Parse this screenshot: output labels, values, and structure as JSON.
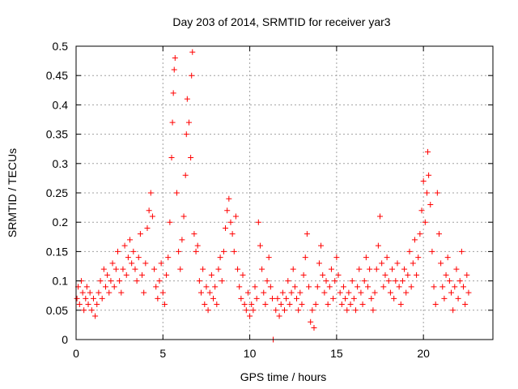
{
  "chart_data": {
    "type": "scatter",
    "title": "Day 203 of 2014, SRMTID for receiver yar3",
    "xlabel": "GPS time / hours",
    "ylabel": "SRMTID / TECUs",
    "xlim": [
      0,
      24
    ],
    "ylim": [
      0,
      0.5
    ],
    "xticks": [
      0,
      5,
      10,
      15,
      20
    ],
    "xtick_labels": [
      "0",
      "5",
      "10",
      "15",
      "20"
    ],
    "yticks": [
      0,
      0.05,
      0.1,
      0.15,
      0.2,
      0.25,
      0.3,
      0.35,
      0.4,
      0.45,
      0.5
    ],
    "ytick_labels": [
      "0",
      "0.05",
      "0.1",
      "0.15",
      "0.2",
      "0.25",
      "0.3",
      "0.35",
      "0.4",
      "0.45",
      "0.5"
    ],
    "grid": true,
    "marker": "+",
    "color": "#ff0000",
    "series": [
      {
        "name": "yar3",
        "points": [
          [
            0.05,
            0.07
          ],
          [
            0.12,
            0.09
          ],
          [
            0.2,
            0.06
          ],
          [
            0.3,
            0.1
          ],
          [
            0.38,
            0.08
          ],
          [
            0.45,
            0.05
          ],
          [
            0.55,
            0.07
          ],
          [
            0.62,
            0.09
          ],
          [
            0.7,
            0.06
          ],
          [
            0.8,
            0.08
          ],
          [
            0.9,
            0.05
          ],
          [
            1.0,
            0.07
          ],
          [
            1.1,
            0.04
          ],
          [
            1.2,
            0.06
          ],
          [
            1.3,
            0.08
          ],
          [
            1.4,
            0.1
          ],
          [
            1.5,
            0.07
          ],
          [
            1.6,
            0.12
          ],
          [
            1.7,
            0.09
          ],
          [
            1.8,
            0.11
          ],
          [
            1.9,
            0.08
          ],
          [
            2.0,
            0.1
          ],
          [
            2.1,
            0.13
          ],
          [
            2.2,
            0.09
          ],
          [
            2.3,
            0.12
          ],
          [
            2.4,
            0.15
          ],
          [
            2.5,
            0.1
          ],
          [
            2.6,
            0.08
          ],
          [
            2.7,
            0.12
          ],
          [
            2.8,
            0.16
          ],
          [
            2.9,
            0.11
          ],
          [
            3.0,
            0.14
          ],
          [
            3.1,
            0.17
          ],
          [
            3.2,
            0.13
          ],
          [
            3.3,
            0.15
          ],
          [
            3.4,
            0.12
          ],
          [
            3.5,
            0.1
          ],
          [
            3.6,
            0.14
          ],
          [
            3.7,
            0.18
          ],
          [
            3.8,
            0.11
          ],
          [
            3.9,
            0.08
          ],
          [
            4.0,
            0.13
          ],
          [
            4.1,
            0.19
          ],
          [
            4.2,
            0.22
          ],
          [
            4.3,
            0.25
          ],
          [
            4.4,
            0.21
          ],
          [
            4.5,
            0.12
          ],
          [
            4.6,
            0.09
          ],
          [
            4.7,
            0.07
          ],
          [
            4.8,
            0.1
          ],
          [
            4.9,
            0.13
          ],
          [
            5.0,
            0.08
          ],
          [
            5.1,
            0.06
          ],
          [
            5.2,
            0.11
          ],
          [
            5.3,
            0.14
          ],
          [
            5.4,
            0.2
          ],
          [
            5.5,
            0.31
          ],
          [
            5.55,
            0.37
          ],
          [
            5.6,
            0.42
          ],
          [
            5.65,
            0.46
          ],
          [
            5.7,
            0.48
          ],
          [
            5.8,
            0.25
          ],
          [
            5.9,
            0.15
          ],
          [
            6.0,
            0.12
          ],
          [
            6.1,
            0.17
          ],
          [
            6.2,
            0.21
          ],
          [
            6.3,
            0.28
          ],
          [
            6.35,
            0.35
          ],
          [
            6.4,
            0.41
          ],
          [
            6.5,
            0.37
          ],
          [
            6.6,
            0.31
          ],
          [
            6.65,
            0.45
          ],
          [
            6.7,
            0.49
          ],
          [
            6.8,
            0.18
          ],
          [
            6.9,
            0.15
          ],
          [
            7.0,
            0.16
          ],
          [
            7.1,
            0.1
          ],
          [
            7.2,
            0.08
          ],
          [
            7.3,
            0.12
          ],
          [
            7.4,
            0.06
          ],
          [
            7.5,
            0.09
          ],
          [
            7.6,
            0.05
          ],
          [
            7.7,
            0.08
          ],
          [
            7.8,
            0.11
          ],
          [
            7.9,
            0.07
          ],
          [
            8.0,
            0.09
          ],
          [
            8.1,
            0.06
          ],
          [
            8.2,
            0.12
          ],
          [
            8.3,
            0.14
          ],
          [
            8.4,
            0.1
          ],
          [
            8.5,
            0.15
          ],
          [
            8.6,
            0.19
          ],
          [
            8.7,
            0.22
          ],
          [
            8.8,
            0.24
          ],
          [
            8.9,
            0.2
          ],
          [
            9.0,
            0.18
          ],
          [
            9.1,
            0.15
          ],
          [
            9.2,
            0.21
          ],
          [
            9.3,
            0.12
          ],
          [
            9.4,
            0.09
          ],
          [
            9.5,
            0.07
          ],
          [
            9.6,
            0.11
          ],
          [
            9.7,
            0.06
          ],
          [
            9.8,
            0.05
          ],
          [
            9.9,
            0.08
          ],
          [
            10.0,
            0.04
          ],
          [
            10.1,
            0.06
          ],
          [
            10.2,
            0.05
          ],
          [
            10.3,
            0.09
          ],
          [
            10.4,
            0.07
          ],
          [
            10.5,
            0.2
          ],
          [
            10.6,
            0.16
          ],
          [
            10.7,
            0.12
          ],
          [
            10.8,
            0.08
          ],
          [
            10.9,
            0.06
          ],
          [
            11.0,
            0.1
          ],
          [
            11.1,
            0.14
          ],
          [
            11.2,
            0.09
          ],
          [
            11.3,
            0.07
          ],
          [
            11.35,
            0.0
          ],
          [
            11.5,
            0.05
          ],
          [
            11.6,
            0.07
          ],
          [
            11.7,
            0.04
          ],
          [
            11.8,
            0.06
          ],
          [
            11.9,
            0.08
          ],
          [
            12.0,
            0.05
          ],
          [
            12.1,
            0.07
          ],
          [
            12.2,
            0.1
          ],
          [
            12.3,
            0.06
          ],
          [
            12.4,
            0.08
          ],
          [
            12.5,
            0.12
          ],
          [
            12.6,
            0.09
          ],
          [
            12.7,
            0.07
          ],
          [
            12.8,
            0.05
          ],
          [
            12.9,
            0.08
          ],
          [
            13.0,
            0.06
          ],
          [
            13.1,
            0.11
          ],
          [
            13.2,
            0.14
          ],
          [
            13.3,
            0.18
          ],
          [
            13.4,
            0.09
          ],
          [
            13.5,
            0.03
          ],
          [
            13.6,
            0.05
          ],
          [
            13.7,
            0.02
          ],
          [
            13.8,
            0.06
          ],
          [
            13.9,
            0.09
          ],
          [
            14.0,
            0.13
          ],
          [
            14.1,
            0.16
          ],
          [
            14.2,
            0.11
          ],
          [
            14.3,
            0.08
          ],
          [
            14.4,
            0.1
          ],
          [
            14.5,
            0.06
          ],
          [
            14.6,
            0.09
          ],
          [
            14.7,
            0.12
          ],
          [
            14.8,
            0.07
          ],
          [
            14.9,
            0.1
          ],
          [
            15.0,
            0.14
          ],
          [
            15.1,
            0.11
          ],
          [
            15.2,
            0.08
          ],
          [
            15.3,
            0.06
          ],
          [
            15.4,
            0.09
          ],
          [
            15.5,
            0.07
          ],
          [
            15.6,
            0.05
          ],
          [
            15.7,
            0.08
          ],
          [
            15.8,
            0.06
          ],
          [
            15.9,
            0.1
          ],
          [
            16.0,
            0.07
          ],
          [
            16.1,
            0.05
          ],
          [
            16.2,
            0.09
          ],
          [
            16.3,
            0.12
          ],
          [
            16.4,
            0.08
          ],
          [
            16.5,
            0.06
          ],
          [
            16.6,
            0.1
          ],
          [
            16.7,
            0.14
          ],
          [
            16.8,
            0.09
          ],
          [
            16.9,
            0.12
          ],
          [
            17.0,
            0.07
          ],
          [
            17.1,
            0.05
          ],
          [
            17.2,
            0.08
          ],
          [
            17.3,
            0.12
          ],
          [
            17.4,
            0.16
          ],
          [
            17.5,
            0.21
          ],
          [
            17.6,
            0.13
          ],
          [
            17.7,
            0.09
          ],
          [
            17.8,
            0.11
          ],
          [
            17.9,
            0.14
          ],
          [
            18.0,
            0.1
          ],
          [
            18.1,
            0.08
          ],
          [
            18.2,
            0.12
          ],
          [
            18.3,
            0.07
          ],
          [
            18.4,
            0.1
          ],
          [
            18.5,
            0.13
          ],
          [
            18.6,
            0.09
          ],
          [
            18.7,
            0.06
          ],
          [
            18.8,
            0.1
          ],
          [
            18.9,
            0.12
          ],
          [
            19.0,
            0.08
          ],
          [
            19.1,
            0.11
          ],
          [
            19.2,
            0.15
          ],
          [
            19.3,
            0.09
          ],
          [
            19.4,
            0.13
          ],
          [
            19.5,
            0.17
          ],
          [
            19.6,
            0.11
          ],
          [
            19.7,
            0.14
          ],
          [
            19.8,
            0.18
          ],
          [
            19.9,
            0.22
          ],
          [
            20.0,
            0.27
          ],
          [
            20.1,
            0.2
          ],
          [
            20.2,
            0.25
          ],
          [
            20.25,
            0.32
          ],
          [
            20.3,
            0.28
          ],
          [
            20.4,
            0.23
          ],
          [
            20.5,
            0.15
          ],
          [
            20.6,
            0.09
          ],
          [
            20.7,
            0.06
          ],
          [
            20.8,
            0.25
          ],
          [
            20.9,
            0.18
          ],
          [
            21.0,
            0.13
          ],
          [
            21.1,
            0.09
          ],
          [
            21.2,
            0.07
          ],
          [
            21.3,
            0.11
          ],
          [
            21.4,
            0.14
          ],
          [
            21.5,
            0.1
          ],
          [
            21.6,
            0.08
          ],
          [
            21.7,
            0.05
          ],
          [
            21.8,
            0.09
          ],
          [
            21.9,
            0.12
          ],
          [
            22.0,
            0.07
          ],
          [
            22.1,
            0.1
          ],
          [
            22.2,
            0.15
          ],
          [
            22.3,
            0.09
          ],
          [
            22.4,
            0.06
          ],
          [
            22.5,
            0.11
          ],
          [
            22.6,
            0.08
          ]
        ]
      }
    ]
  }
}
